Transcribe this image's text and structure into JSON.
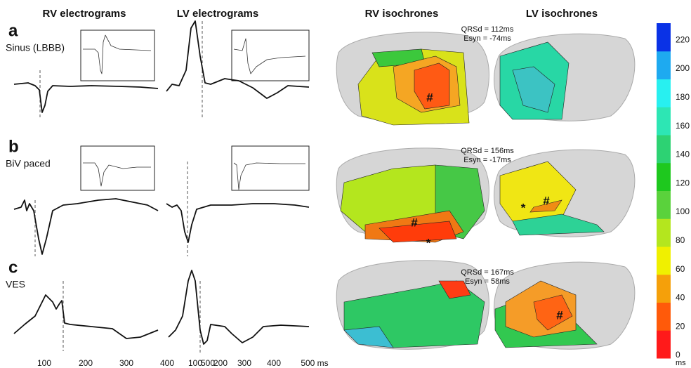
{
  "headers": [
    "RV electrograms",
    "LV electrograms",
    "RV isochrones",
    "LV isochrones"
  ],
  "rows": [
    {
      "letter": "a",
      "label": "Sinus (LBBB)",
      "qrsd": "QRSd = 112ms",
      "esyn": "Esyn = -74ms",
      "rv_markers": [
        "#"
      ],
      "lv_markers": []
    },
    {
      "letter": "b",
      "label": "BiV paced",
      "qrsd": "QRSd = 156ms",
      "esyn": "Esyn = -17ms",
      "rv_markers": [
        "#",
        "*"
      ],
      "lv_markers": [
        "*",
        "#"
      ]
    },
    {
      "letter": "c",
      "label": "VES",
      "qrsd": "QRSd = 167ms",
      "esyn": "Esyn = 58ms",
      "rv_markers": [],
      "lv_markers": [
        "#"
      ]
    }
  ],
  "time_axis": {
    "rv_ticks": [
      "100",
      "200",
      "300",
      "400",
      "500"
    ],
    "lv_ticks": [
      "100",
      "200",
      "300",
      "400",
      "500 ms"
    ]
  },
  "colorbar": {
    "ticks": [
      "0",
      "20",
      "40",
      "60",
      "80",
      "100",
      "120",
      "140",
      "160",
      "180",
      "200",
      "220"
    ],
    "unit": "ms"
  }
}
